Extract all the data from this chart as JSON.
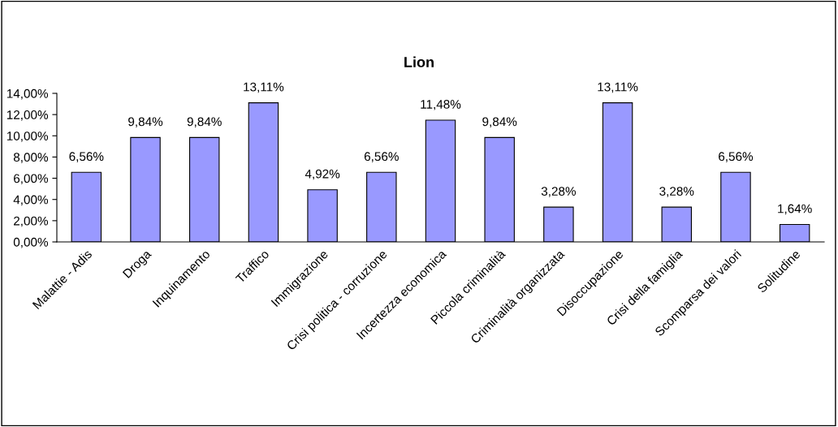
{
  "chart_data": {
    "type": "bar",
    "title": "Lion",
    "categories": [
      "Malattie - Adis",
      "Droga",
      "Inquinamento",
      "Traffico",
      "Immigrazione",
      "Crisi politica - corruzione",
      "Incertezza economica",
      "Piccola criminalità",
      "Criminalità organizzata",
      "Disoccupazione",
      "Crisi della famiglia",
      "Scomparsa dei valori",
      "Solitudine"
    ],
    "values": [
      6.56,
      9.84,
      9.84,
      13.11,
      4.92,
      6.56,
      11.48,
      9.84,
      3.28,
      13.11,
      3.28,
      6.56,
      1.64
    ],
    "value_labels": [
      "6,56%",
      "9,84%",
      "9,84%",
      "13,11%",
      "4,92%",
      "6,56%",
      "11,48%",
      "9,84%",
      "3,28%",
      "13,11%",
      "3,28%",
      "6,56%",
      "1,64%"
    ],
    "color": "#9999ff",
    "ylim": [
      0,
      14
    ],
    "yticks": [
      {
        "value": 0,
        "label": "0,00%"
      },
      {
        "value": 2,
        "label": "2,00%"
      },
      {
        "value": 4,
        "label": "4,00%"
      },
      {
        "value": 6,
        "label": "6,00%"
      },
      {
        "value": 8,
        "label": "8,00%"
      },
      {
        "value": 10,
        "label": "10,00%"
      },
      {
        "value": 12,
        "label": "12,00%"
      },
      {
        "value": 14,
        "label": "14,00%"
      }
    ],
    "grid": false,
    "legend": false
  }
}
